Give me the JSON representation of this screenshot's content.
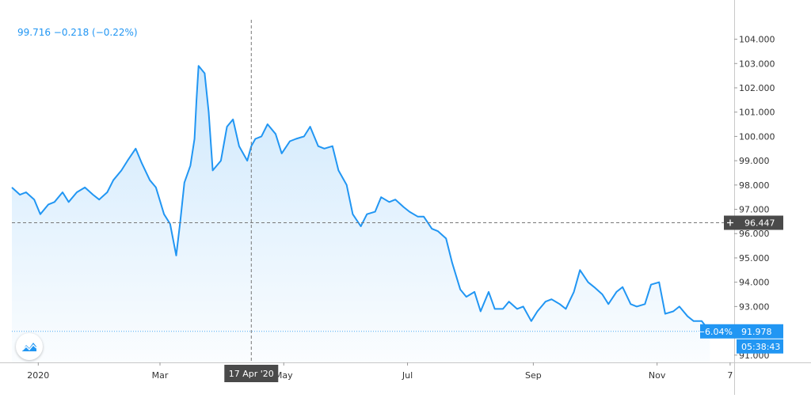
{
  "legend": {
    "text": "99.716  −0.218 (−0.22%)"
  },
  "crosshair": {
    "price": "96.447",
    "date": "17 Apr '20"
  },
  "last_price": {
    "change": "−6.04%",
    "value": "91.978",
    "countdown": "05:38:43"
  },
  "colors": {
    "line": "#2196f3",
    "crosshair_label": "#4a4a4a",
    "price_label": "#2196f3",
    "axis_text": "#333333"
  },
  "icons": {
    "logo": "tradingview-logo-icon",
    "crosshair_add": "plus-icon"
  },
  "chart_data": {
    "type": "area",
    "title": "",
    "xlabel": "",
    "ylabel": "",
    "ylim": [
      90.7,
      104.8
    ],
    "y_ticks": [
      "104.000",
      "103.000",
      "102.000",
      "101.000",
      "100.000",
      "99.000",
      "98.000",
      "97.000",
      "96.000",
      "95.000",
      "94.000",
      "93.000",
      "92.000",
      "91.000"
    ],
    "x_ticks": [
      {
        "label": "2020",
        "date": "2020-01-01"
      },
      {
        "label": "Mar",
        "date": "2020-03-01"
      },
      {
        "label": "May",
        "date": "2020-05-01"
      },
      {
        "label": "Jul",
        "date": "2020-07-01"
      },
      {
        "label": "Sep",
        "date": "2020-09-01"
      },
      {
        "label": "Nov",
        "date": "2020-11-01"
      },
      {
        "label": "7",
        "date": "2020-12-07"
      }
    ],
    "grid": false,
    "series": [
      {
        "name": "",
        "points": [
          [
            "2019-12-19",
            97.9
          ],
          [
            "2019-12-23",
            97.6
          ],
          [
            "2019-12-26",
            97.7
          ],
          [
            "2019-12-30",
            97.4
          ],
          [
            "2020-01-02",
            96.8
          ],
          [
            "2020-01-06",
            97.2
          ],
          [
            "2020-01-09",
            97.3
          ],
          [
            "2020-01-13",
            97.7
          ],
          [
            "2020-01-16",
            97.3
          ],
          [
            "2020-01-20",
            97.7
          ],
          [
            "2020-01-24",
            97.9
          ],
          [
            "2020-01-28",
            97.6
          ],
          [
            "2020-01-31",
            97.4
          ],
          [
            "2020-02-04",
            97.7
          ],
          [
            "2020-02-07",
            98.2
          ],
          [
            "2020-02-11",
            98.6
          ],
          [
            "2020-02-14",
            99.0
          ],
          [
            "2020-02-18",
            99.5
          ],
          [
            "2020-02-21",
            98.9
          ],
          [
            "2020-02-25",
            98.2
          ],
          [
            "2020-02-28",
            97.9
          ],
          [
            "2020-03-03",
            96.8
          ],
          [
            "2020-03-06",
            96.4
          ],
          [
            "2020-03-09",
            95.1
          ],
          [
            "2020-03-11",
            96.5
          ],
          [
            "2020-03-13",
            98.1
          ],
          [
            "2020-03-16",
            98.8
          ],
          [
            "2020-03-18",
            99.9
          ],
          [
            "2020-03-19",
            101.5
          ],
          [
            "2020-03-20",
            102.9
          ],
          [
            "2020-03-23",
            102.6
          ],
          [
            "2020-03-25",
            101.0
          ],
          [
            "2020-03-27",
            98.6
          ],
          [
            "2020-03-31",
            99.0
          ],
          [
            "2020-04-03",
            100.4
          ],
          [
            "2020-04-06",
            100.7
          ],
          [
            "2020-04-09",
            99.6
          ],
          [
            "2020-04-13",
            99.0
          ],
          [
            "2020-04-15",
            99.6
          ],
          [
            "2020-04-17",
            99.9
          ],
          [
            "2020-04-20",
            100.0
          ],
          [
            "2020-04-23",
            100.5
          ],
          [
            "2020-04-27",
            100.1
          ],
          [
            "2020-04-30",
            99.3
          ],
          [
            "2020-05-04",
            99.8
          ],
          [
            "2020-05-07",
            99.9
          ],
          [
            "2020-05-11",
            100.0
          ],
          [
            "2020-05-14",
            100.4
          ],
          [
            "2020-05-18",
            99.6
          ],
          [
            "2020-05-21",
            99.5
          ],
          [
            "2020-05-25",
            99.6
          ],
          [
            "2020-05-28",
            98.6
          ],
          [
            "2020-06-01",
            98.0
          ],
          [
            "2020-06-04",
            96.8
          ],
          [
            "2020-06-08",
            96.3
          ],
          [
            "2020-06-11",
            96.8
          ],
          [
            "2020-06-15",
            96.9
          ],
          [
            "2020-06-18",
            97.5
          ],
          [
            "2020-06-22",
            97.3
          ],
          [
            "2020-06-25",
            97.4
          ],
          [
            "2020-06-29",
            97.1
          ],
          [
            "2020-07-02",
            96.9
          ],
          [
            "2020-07-06",
            96.7
          ],
          [
            "2020-07-09",
            96.7
          ],
          [
            "2020-07-13",
            96.2
          ],
          [
            "2020-07-16",
            96.1
          ],
          [
            "2020-07-20",
            95.8
          ],
          [
            "2020-07-23",
            94.8
          ],
          [
            "2020-07-27",
            93.7
          ],
          [
            "2020-07-30",
            93.4
          ],
          [
            "2020-08-03",
            93.6
          ],
          [
            "2020-08-06",
            92.8
          ],
          [
            "2020-08-10",
            93.6
          ],
          [
            "2020-08-13",
            92.9
          ],
          [
            "2020-08-17",
            92.9
          ],
          [
            "2020-08-20",
            93.2
          ],
          [
            "2020-08-24",
            92.9
          ],
          [
            "2020-08-27",
            93.0
          ],
          [
            "2020-08-31",
            92.4
          ],
          [
            "2020-09-03",
            92.8
          ],
          [
            "2020-09-07",
            93.2
          ],
          [
            "2020-09-10",
            93.3
          ],
          [
            "2020-09-14",
            93.1
          ],
          [
            "2020-09-17",
            92.9
          ],
          [
            "2020-09-21",
            93.6
          ],
          [
            "2020-09-24",
            94.5
          ],
          [
            "2020-09-28",
            94.0
          ],
          [
            "2020-10-01",
            93.8
          ],
          [
            "2020-10-05",
            93.5
          ],
          [
            "2020-10-08",
            93.1
          ],
          [
            "2020-10-12",
            93.6
          ],
          [
            "2020-10-15",
            93.8
          ],
          [
            "2020-10-19",
            93.1
          ],
          [
            "2020-10-22",
            93.0
          ],
          [
            "2020-10-26",
            93.1
          ],
          [
            "2020-10-29",
            93.9
          ],
          [
            "2020-11-02",
            94.0
          ],
          [
            "2020-11-05",
            92.7
          ],
          [
            "2020-11-09",
            92.8
          ],
          [
            "2020-11-12",
            93.0
          ],
          [
            "2020-11-16",
            92.6
          ],
          [
            "2020-11-19",
            92.4
          ],
          [
            "2020-11-23",
            92.4
          ],
          [
            "2020-11-27",
            91.978
          ]
        ]
      }
    ]
  }
}
